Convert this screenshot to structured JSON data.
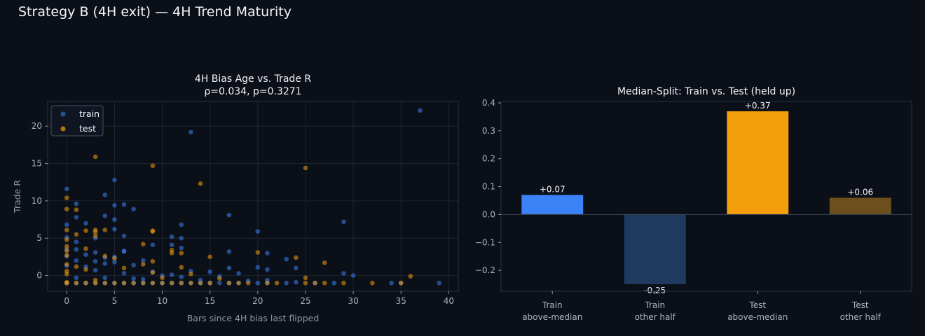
{
  "suptitle": "Strategy B (4H exit) — 4H Trend Maturity",
  "colors": {
    "background": "#0b0f17",
    "train": "#3b82f6",
    "test": "#f59e0b",
    "train_other": "#1e3a5f",
    "test_other": "#6b4f1d",
    "grid": "#1d2433",
    "spine": "#2a3242"
  },
  "chart_data": [
    {
      "type": "scatter",
      "title": "4H Bias Age vs. Trade R",
      "subtitle": "ρ=0.034, p=0.3271",
      "xlabel": "Bars since 4H bias last flipped",
      "ylabel": "Trade R",
      "xlim": [
        -2,
        41
      ],
      "ylim": [
        -2.1,
        23.3
      ],
      "xticks": [
        0,
        5,
        10,
        15,
        20,
        25,
        30,
        35,
        40
      ],
      "yticks": [
        0,
        5,
        10,
        15,
        20
      ],
      "grid": true,
      "legend": "top-left",
      "series": [
        {
          "name": "train",
          "color": "#3b82f6",
          "points": [
            [
              37,
              22.1
            ],
            [
              13,
              19.2
            ],
            [
              5,
              12.8
            ],
            [
              0,
              11.6
            ],
            [
              4,
              10.8
            ],
            [
              1,
              9.6
            ],
            [
              6,
              9.5
            ],
            [
              5,
              9.4
            ],
            [
              7,
              8.9
            ],
            [
              17,
              8.1
            ],
            [
              4,
              8.0
            ],
            [
              1,
              7.8
            ],
            [
              5,
              7.5
            ],
            [
              29,
              7.2
            ],
            [
              2,
              7.0
            ],
            [
              12,
              6.8
            ],
            [
              0,
              6.8
            ],
            [
              5,
              6.2
            ],
            [
              20,
              5.9
            ],
            [
              6,
              5.3
            ],
            [
              11,
              5.2
            ],
            [
              0,
              5.1
            ],
            [
              12,
              5.0
            ],
            [
              3,
              5.0
            ],
            [
              1,
              4.5
            ],
            [
              9,
              4.1
            ],
            [
              11,
              4.1
            ],
            [
              12,
              3.7
            ],
            [
              0,
              3.5
            ],
            [
              1,
              3.5
            ],
            [
              6,
              3.3
            ],
            [
              17,
              3.2
            ],
            [
              3,
              3.1
            ],
            [
              6,
              3.2
            ],
            [
              21,
              3.0
            ],
            [
              2,
              2.8
            ],
            [
              0,
              2.6
            ],
            [
              5,
              2.5
            ],
            [
              4,
              2.4
            ],
            [
              23,
              2.2
            ],
            [
              8,
              2.0
            ],
            [
              3,
              1.9
            ],
            [
              1,
              2.0
            ],
            [
              5,
              1.8
            ],
            [
              4,
              1.6
            ],
            [
              7,
              1.4
            ],
            [
              0,
              1.3
            ],
            [
              24,
              1.0
            ],
            [
              2,
              1.2
            ],
            [
              17,
              1.0
            ],
            [
              20,
              1.1
            ],
            [
              13,
              0.6
            ],
            [
              15,
              0.5
            ],
            [
              21,
              0.8
            ],
            [
              3,
              0.7
            ],
            [
              9,
              0.5
            ],
            [
              29,
              0.3
            ],
            [
              18,
              0.3
            ],
            [
              6,
              0.3
            ],
            [
              11,
              0.1
            ],
            [
              10,
              0.0
            ],
            [
              30,
              0.0
            ],
            [
              16,
              -0.1
            ],
            [
              12,
              -0.2
            ],
            [
              1,
              -0.3
            ],
            [
              4,
              -0.3
            ],
            [
              7,
              -0.4
            ],
            [
              8,
              -0.5
            ],
            [
              14,
              -0.6
            ],
            [
              19,
              -0.7
            ],
            [
              21,
              -0.6
            ],
            [
              24,
              -0.9
            ],
            [
              0,
              -1.0
            ],
            [
              1,
              -1.0
            ],
            [
              2,
              -1.0
            ],
            [
              3,
              -1.0
            ],
            [
              4,
              -1.0
            ],
            [
              5,
              -1.0
            ],
            [
              6,
              -1.0
            ],
            [
              7,
              -1.0
            ],
            [
              8,
              -1.0
            ],
            [
              9,
              -1.0
            ],
            [
              10,
              -1.0
            ],
            [
              11,
              -1.0
            ],
            [
              12,
              -1.0
            ],
            [
              13,
              -1.0
            ],
            [
              14,
              -1.0
            ],
            [
              15,
              -1.0
            ],
            [
              16,
              -1.0
            ],
            [
              17,
              -1.0
            ],
            [
              18,
              -1.0
            ],
            [
              20,
              -1.0
            ],
            [
              21,
              -1.0
            ],
            [
              23,
              -1.0
            ],
            [
              26,
              -1.0
            ],
            [
              28,
              -1.0
            ],
            [
              34,
              -1.0
            ],
            [
              35,
              -1.0
            ],
            [
              39,
              -1.0
            ]
          ]
        },
        {
          "name": "test",
          "color": "#f59e0b",
          "points": [
            [
              3,
              15.9
            ],
            [
              9,
              14.7
            ],
            [
              25,
              14.4
            ],
            [
              14,
              12.3
            ],
            [
              0,
              10.4
            ],
            [
              0,
              8.9
            ],
            [
              1,
              8.8
            ],
            [
              0,
              6.1
            ],
            [
              2,
              6.0
            ],
            [
              3,
              6.1
            ],
            [
              3,
              5.8
            ],
            [
              4,
              6.1
            ],
            [
              9,
              6.0
            ],
            [
              9,
              5.9
            ],
            [
              1,
              5.5
            ],
            [
              3,
              5.3
            ],
            [
              0,
              4.8
            ],
            [
              8,
              4.2
            ],
            [
              0,
              3.9
            ],
            [
              2,
              3.6
            ],
            [
              11,
              3.4
            ],
            [
              0,
              3.3
            ],
            [
              11,
              3.0
            ],
            [
              12,
              3.0
            ],
            [
              20,
              3.1
            ],
            [
              0,
              2.7
            ],
            [
              4,
              2.6
            ],
            [
              5,
              2.3
            ],
            [
              15,
              2.5
            ],
            [
              24,
              2.4
            ],
            [
              9,
              1.9
            ],
            [
              27,
              1.7
            ],
            [
              0,
              1.5
            ],
            [
              1,
              1.2
            ],
            [
              6,
              1.0
            ],
            [
              12,
              1.1
            ],
            [
              8,
              1.5
            ],
            [
              2,
              0.8
            ],
            [
              0,
              0.6
            ],
            [
              9,
              0.4
            ],
            [
              13,
              0.2
            ],
            [
              0,
              0.2
            ],
            [
              36,
              -0.1
            ],
            [
              25,
              -0.3
            ],
            [
              10,
              -0.3
            ],
            [
              16,
              -0.4
            ],
            [
              3,
              -0.6
            ],
            [
              0,
              -0.9
            ],
            [
              0,
              -1.0
            ],
            [
              1,
              -1.0
            ],
            [
              2,
              -1.0
            ],
            [
              3,
              -1.0
            ],
            [
              4,
              -1.0
            ],
            [
              5,
              -1.0
            ],
            [
              6,
              -1.0
            ],
            [
              7,
              -1.0
            ],
            [
              8,
              -1.0
            ],
            [
              9,
              -1.0
            ],
            [
              10,
              -1.0
            ],
            [
              11,
              -1.0
            ],
            [
              12,
              -1.0
            ],
            [
              13,
              -1.0
            ],
            [
              14,
              -1.0
            ],
            [
              15,
              -1.0
            ],
            [
              17,
              -1.0
            ],
            [
              18,
              -1.0
            ],
            [
              19,
              -1.0
            ],
            [
              21,
              -1.0
            ],
            [
              22,
              -1.0
            ],
            [
              25,
              -1.0
            ],
            [
              26,
              -1.0
            ],
            [
              27,
              -1.0
            ],
            [
              29,
              -1.0
            ],
            [
              32,
              -1.0
            ],
            [
              35,
              -1.0
            ]
          ]
        }
      ]
    },
    {
      "type": "bar",
      "title": "Median-Split: Train vs. Test (held up)",
      "categories": [
        "Train\nabove-median",
        "Train\nother half",
        "Test\nabove-median",
        "Test\nother half"
      ],
      "values": [
        0.07,
        -0.25,
        0.37,
        0.06
      ],
      "value_labels": [
        "+0.07",
        "-0.25",
        "+0.37",
        "+0.06"
      ],
      "bar_colors": [
        "#3b82f6",
        "#1e3a5f",
        "#f59e0b",
        "#6b4f1d"
      ],
      "ylim": [
        -0.275,
        0.405
      ],
      "yticks": [
        -0.2,
        -0.1,
        0.0,
        0.1,
        0.2,
        0.3,
        0.4
      ],
      "ytick_labels": [
        "−0.2",
        "−0.1",
        "0.0",
        "0.1",
        "0.2",
        "0.3",
        "0.4"
      ],
      "grid": false
    }
  ]
}
